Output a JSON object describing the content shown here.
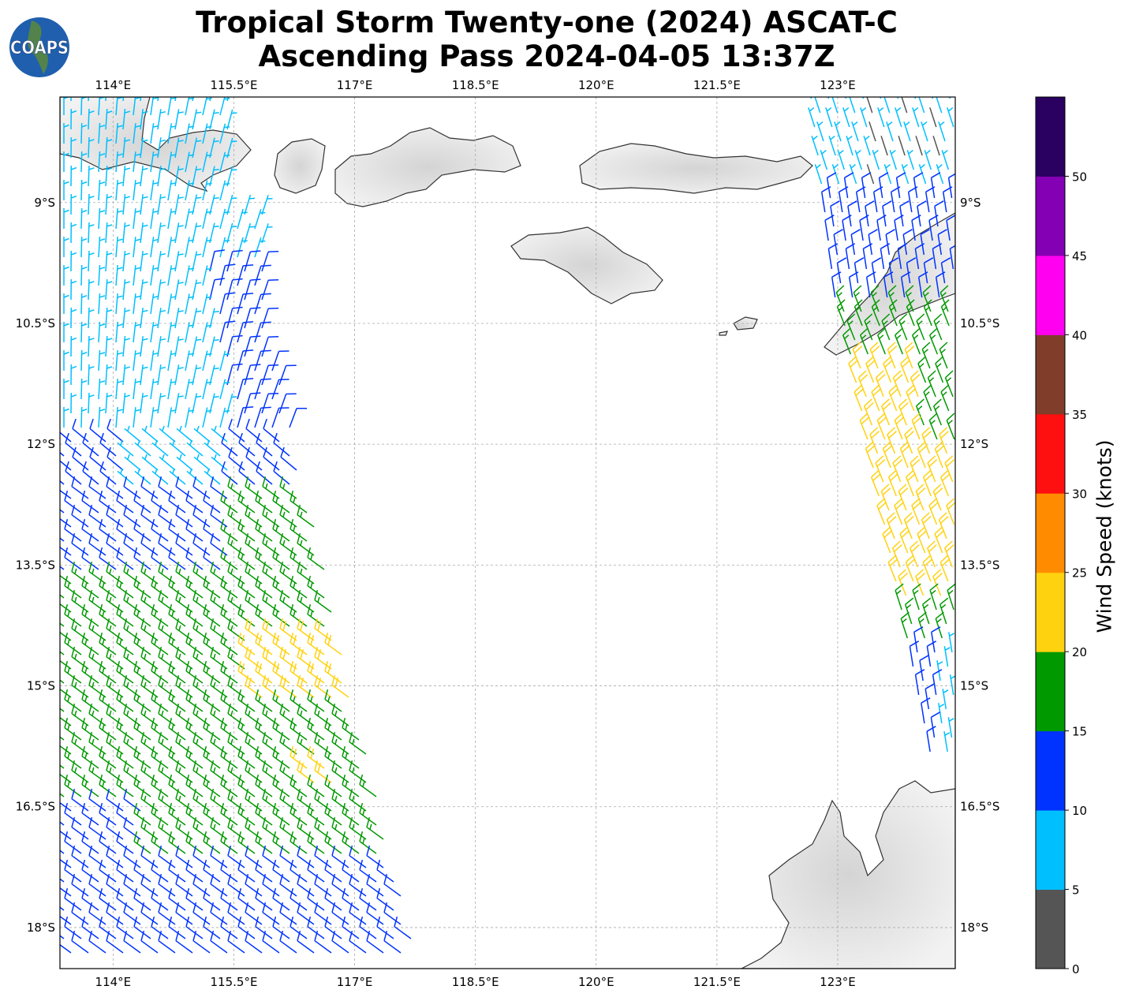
{
  "title": {
    "line1": "Tropical Storm Twenty-one (2024) ASCAT-C",
    "line2": "Ascending Pass 2024-04-05 13:37Z"
  },
  "logo": {
    "text": "COAPS"
  },
  "chart_data": {
    "type": "map-wind-barbs",
    "title": "Tropical Storm Twenty-one (2024) ASCAT-C Ascending Pass 2024-04-05 13:37Z",
    "lon_range": [
      113.34,
      124.46
    ],
    "lat_range": [
      -18.51,
      -7.69
    ],
    "lon_ticks": [
      "114°E",
      "115.5°E",
      "117°E",
      "118.5°E",
      "120°E",
      "121.5°E",
      "123°E"
    ],
    "lon_values": [
      114,
      115.5,
      117,
      118.5,
      120,
      121.5,
      123
    ],
    "lat_ticks": [
      "9°S",
      "10.5°S",
      "12°S",
      "13.5°S",
      "15°S",
      "16.5°S",
      "18°S"
    ],
    "lat_values": [
      -9,
      -10.5,
      -12,
      -13.5,
      -15,
      -16.5,
      -18
    ],
    "grid": true,
    "colorbar": {
      "label": "Wind Speed (knots)",
      "ticks": [
        "0",
        "5",
        "10",
        "15",
        "20",
        "25",
        "30",
        "35",
        "40",
        "45",
        "50"
      ],
      "bounds": [
        0,
        5,
        10,
        15,
        20,
        25,
        30,
        35,
        40,
        45,
        50,
        55
      ],
      "colors": [
        "#555555",
        "#00bfff",
        "#0033ff",
        "#009900",
        "#ffd20f",
        "#ff8c00",
        "#ff1010",
        "#7f3d2a",
        "#ff00f0",
        "#8400b4",
        "#2a0060"
      ]
    }
  }
}
